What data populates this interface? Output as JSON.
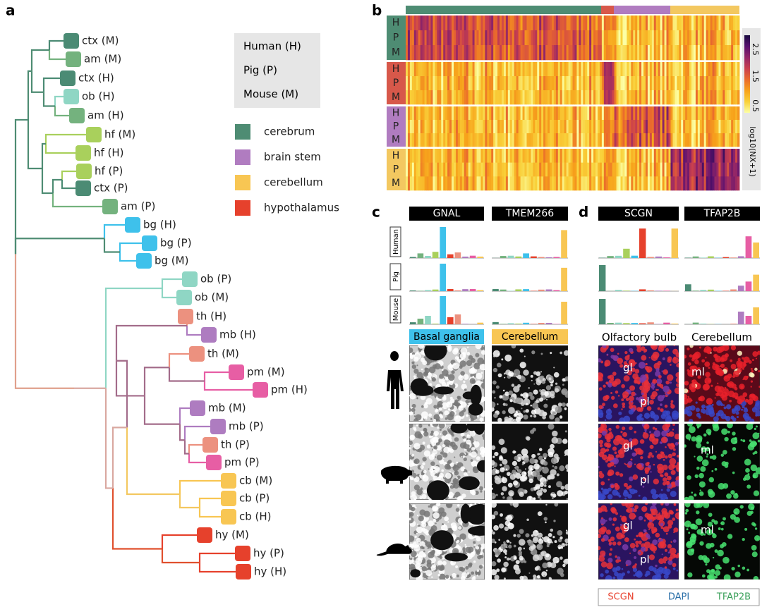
{
  "panel_labels": [
    "a",
    "b",
    "c",
    "d"
  ],
  "tree": {
    "leaves": [
      {
        "label": "ctx (M)",
        "color": "#4b8b74"
      },
      {
        "label": "am (M)",
        "color": "#74b27e"
      },
      {
        "label": "ctx (H)",
        "color": "#4b8b74"
      },
      {
        "label": "ob (H)",
        "color": "#8fd6c4"
      },
      {
        "label": "am (H)",
        "color": "#74b27e"
      },
      {
        "label": "hf (M)",
        "color": "#a9d05c"
      },
      {
        "label": "hf (H)",
        "color": "#a9d05c"
      },
      {
        "label": "hf (P)",
        "color": "#a9d05c"
      },
      {
        "label": "ctx (P)",
        "color": "#4b8b74"
      },
      {
        "label": "am (P)",
        "color": "#74b27e"
      },
      {
        "label": "bg (H)",
        "color": "#3ec1eb"
      },
      {
        "label": "bg (P)",
        "color": "#3ec1eb"
      },
      {
        "label": "bg (M)",
        "color": "#3ec1eb"
      },
      {
        "label": "ob (P)",
        "color": "#8fd6c4"
      },
      {
        "label": "ob (M)",
        "color": "#8fd6c4"
      },
      {
        "label": "th (H)",
        "color": "#ec917f"
      },
      {
        "label": "mb (H)",
        "color": "#ae7cc0"
      },
      {
        "label": "th (M)",
        "color": "#ec917f"
      },
      {
        "label": "pm (M)",
        "color": "#e75ea4"
      },
      {
        "label": "pm (H)",
        "color": "#e75ea4"
      },
      {
        "label": "mb (M)",
        "color": "#ae7cc0"
      },
      {
        "label": "mb (P)",
        "color": "#ae7cc0"
      },
      {
        "label": "th (P)",
        "color": "#ec917f"
      },
      {
        "label": "pm (P)",
        "color": "#e75ea4"
      },
      {
        "label": "cb (M)",
        "color": "#f8c653"
      },
      {
        "label": "cb (P)",
        "color": "#f8c653"
      },
      {
        "label": "cb (H)",
        "color": "#f8c653"
      },
      {
        "label": "hy (M)",
        "color": "#e6412c"
      },
      {
        "label": "hy (P)",
        "color": "#e6412c"
      },
      {
        "label": "hy (H)",
        "color": "#e6412c"
      }
    ]
  },
  "species_legend": [
    "Human (H)",
    "Pig (P)",
    "Mouse (M)"
  ],
  "region_legend": [
    {
      "label": "cerebrum",
      "color": "#4e8c73"
    },
    {
      "label": "brain stem",
      "color": "#b07cc0"
    },
    {
      "label": "cerebellum",
      "color": "#f8c653"
    },
    {
      "label": "hypothalamus",
      "color": "#e6412c"
    }
  ],
  "heatmap": {
    "row_letters": [
      "H",
      "P",
      "M"
    ],
    "colorbar_ticks": [
      "2.5",
      "1.5",
      "0.5"
    ],
    "colorbar_label": "log10(NX+1)"
  },
  "panel_c": {
    "genes": [
      "GNAL",
      "TMEM266"
    ],
    "species": [
      "Human",
      "Pig",
      "Mouse"
    ],
    "regions": [
      "Basal ganglia",
      "Cerebellum"
    ]
  },
  "panel_d": {
    "genes": [
      "SCGN",
      "TFAP2B"
    ],
    "regions": [
      "Olfactory bulb",
      "Cerebellum"
    ],
    "layers": [
      "gl",
      "pl",
      "ml"
    ],
    "stains": [
      "SCGN",
      "DAPI",
      "TFAP2B"
    ]
  }
}
